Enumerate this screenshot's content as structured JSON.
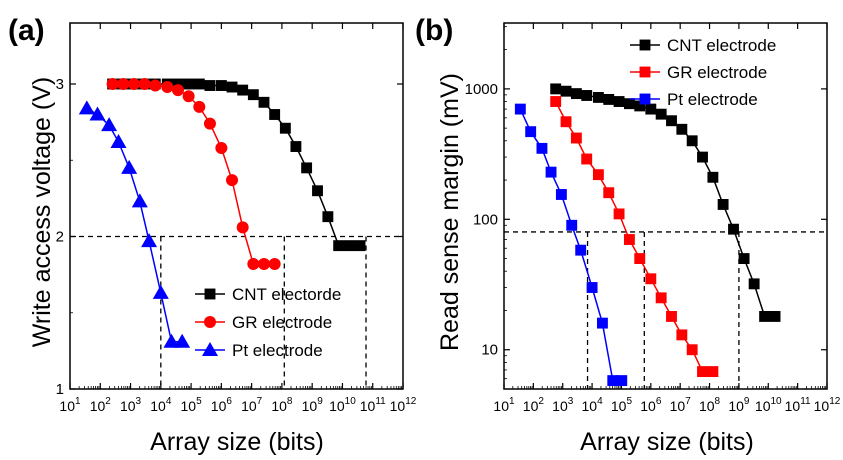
{
  "panels": [
    {
      "label": "(a)",
      "ylabel": "Write access voltage (V)",
      "xlabel": "Array size (bits)"
    },
    {
      "label": "(b)",
      "ylabel": "Read sense margin (mV)",
      "xlabel": "Array size (bits)"
    }
  ],
  "chart_data": [
    {
      "type": "line",
      "panel": "(a)",
      "xlabel": "Array size (bits)",
      "ylabel": "Write access voltage (V)",
      "x_scale": "log",
      "xlim": [
        10,
        1000000000000
      ],
      "ylim": [
        1,
        3.4
      ],
      "x_ticks": [
        10,
        100,
        1000,
        10000,
        100000,
        1000000,
        10000000,
        100000000,
        1000000000,
        10000000000,
        100000000000,
        1000000000000
      ],
      "x_tick_labels": [
        [
          "10",
          "1"
        ],
        [
          "10",
          "2"
        ],
        [
          "10",
          "3"
        ],
        [
          "10",
          "4"
        ],
        [
          "10",
          "5"
        ],
        [
          "10",
          "6"
        ],
        [
          "10",
          "7"
        ],
        [
          "10",
          "8"
        ],
        [
          "10",
          "9"
        ],
        [
          "10",
          "10"
        ],
        [
          "10",
          "11"
        ],
        [
          "10",
          "12"
        ]
      ],
      "y_ticks": [
        1,
        2,
        3
      ],
      "y_tick_labels": [
        "1",
        "2",
        "3"
      ],
      "grid": false,
      "legend_position": "bottom-right",
      "reference_lines": {
        "y": 2,
        "x": [
          10000,
          120000000,
          60000000000
        ]
      },
      "series": [
        {
          "name": "CNT electorde",
          "color": "#000000",
          "marker": "square",
          "x": [
            256,
            576,
            1296,
            2916,
            6561,
            16384,
            36864,
            82944,
            186624,
            419904,
            1000000,
            2250000,
            5062500,
            11390625,
            25600000,
            57600000,
            130000000,
            290000000,
            655000000,
            1500000000,
            3300000000,
            7500000000,
            17000000000,
            38000000000,
            85000000000
          ],
          "y": [
            3.0,
            3.0,
            3.0,
            3.0,
            3.0,
            3.0,
            3.0,
            3.0,
            3.0,
            2.99,
            2.99,
            2.98,
            2.96,
            2.93,
            2.88,
            2.8,
            2.71,
            2.59,
            2.45,
            2.3,
            2.13,
            1.94,
            1.94,
            1.94,
            1.94
          ]
        },
        {
          "name": "GR electrode",
          "color": "#ff0000",
          "marker": "circle",
          "x": [
            256,
            576,
            1296,
            2916,
            6561,
            16384,
            36864,
            82944,
            186624,
            419904,
            1000000,
            2250000,
            5062500,
            11390625,
            25600000,
            57600000,
            130000000
          ],
          "y": [
            3.0,
            3.0,
            3.0,
            3.0,
            2.99,
            2.98,
            2.96,
            2.92,
            2.85,
            2.74,
            2.58,
            2.37,
            2.06,
            1.82,
            1.82,
            1.82,
            1.82
          ]
        },
        {
          "name": "Pt electrode",
          "color": "#0000ff",
          "marker": "triangle",
          "x": [
            36,
            81,
            196,
            400,
            900,
            2025,
            4096,
            10000,
            22500,
            50625,
            102400
          ],
          "y": [
            2.84,
            2.8,
            2.73,
            2.62,
            2.45,
            2.23,
            1.97,
            1.63,
            1.31,
            1.31,
            1.31
          ]
        }
      ]
    },
    {
      "type": "line",
      "panel": "(b)",
      "xlabel": "Array size (bits)",
      "ylabel": "Read sense margin (mV)",
      "x_scale": "log",
      "y_scale": "log",
      "xlim": [
        10,
        1000000000000
      ],
      "ylim": [
        5,
        3200
      ],
      "x_ticks": [
        10,
        100,
        1000,
        10000,
        100000,
        1000000,
        10000000,
        100000000,
        1000000000,
        10000000000,
        100000000000,
        1000000000000
      ],
      "x_tick_labels": [
        [
          "10",
          "1"
        ],
        [
          "10",
          "2"
        ],
        [
          "10",
          "3"
        ],
        [
          "10",
          "4"
        ],
        [
          "10",
          "5"
        ],
        [
          "10",
          "6"
        ],
        [
          "10",
          "7"
        ],
        [
          "10",
          "8"
        ],
        [
          "10",
          "9"
        ],
        [
          "10",
          "10"
        ],
        [
          "10",
          "11"
        ],
        [
          "10",
          "12"
        ]
      ],
      "y_ticks": [
        10,
        100,
        1000
      ],
      "y_tick_labels": [
        "10",
        "100",
        "1000"
      ],
      "grid": false,
      "legend_position": "top-right",
      "reference_lines": {
        "y": 80,
        "x": [
          7000,
          600000,
          1000000000
        ]
      },
      "series": [
        {
          "name": "CNT electrode",
          "color": "#000000",
          "marker": "square",
          "x": [
            576,
            1296,
            2916,
            6561,
            16384,
            36864,
            82944,
            186624,
            419904,
            1000000,
            2250000,
            5062500,
            11390625,
            25600000,
            57600000,
            130000000,
            290000000,
            655000000,
            1500000000,
            3300000000,
            7500000000,
            17000000000,
            38000000000
          ],
          "y": [
            1000,
            960,
            920,
            890,
            860,
            830,
            800,
            770,
            740,
            700,
            640,
            570,
            490,
            400,
            300,
            210,
            130,
            84,
            50,
            32,
            18,
            18,
            18
          ]
        },
        {
          "name": "GR electrode",
          "color": "#ff0000",
          "marker": "square",
          "x": [
            576,
            1296,
            2916,
            6561,
            16384,
            36864,
            82944,
            186624,
            419904,
            1000000,
            2250000,
            5062500,
            11390625,
            25600000,
            57600000,
            130000000,
            290000000
          ],
          "y": [
            800,
            560,
            420,
            290,
            220,
            160,
            110,
            70,
            50,
            35,
            25,
            18,
            13,
            10,
            6.8,
            6.8,
            6.8
          ]
        },
        {
          "name": "Pt electrode",
          "color": "#0000ff",
          "marker": "square",
          "x": [
            36,
            81,
            196,
            400,
            900,
            2025,
            4096,
            10000,
            22500,
            50625,
            102400,
            250000
          ],
          "y": [
            700,
            470,
            350,
            230,
            155,
            90,
            58,
            30,
            16,
            5.8,
            5.8,
            5.8
          ]
        }
      ]
    }
  ]
}
